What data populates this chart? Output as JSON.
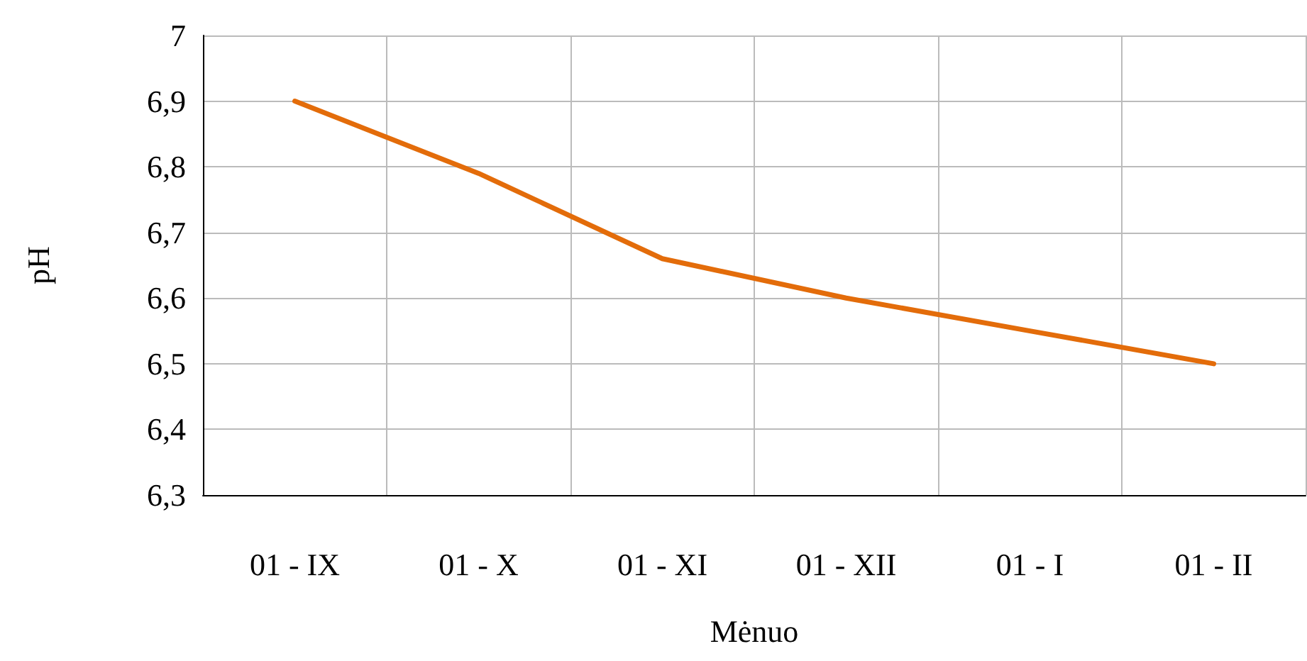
{
  "chart_data": {
    "type": "line",
    "xlabel": "Mėnuo",
    "ylabel": "pH",
    "categories": [
      "01 - IX",
      "01 - X",
      "01 - XI",
      "01 - XII",
      "01 - I",
      "01 - II"
    ],
    "series": [
      {
        "color": "#e36c0a",
        "values": [
          6.9,
          6.79,
          6.66,
          6.6,
          6.55,
          6.5
        ]
      }
    ],
    "ylim": [
      6.3,
      7
    ],
    "yticks": [
      {
        "value": 6.3,
        "label": "6,3"
      },
      {
        "value": 6.4,
        "label": "6,4"
      },
      {
        "value": 6.5,
        "label": "6,5"
      },
      {
        "value": 6.6,
        "label": "6,6"
      },
      {
        "value": 6.7,
        "label": "6,7"
      },
      {
        "value": 6.8,
        "label": "6,8"
      },
      {
        "value": 6.9,
        "label": "6,9"
      },
      {
        "value": 7,
        "label": "7"
      }
    ],
    "grid": true,
    "marker": "none",
    "line_style": "solid"
  }
}
